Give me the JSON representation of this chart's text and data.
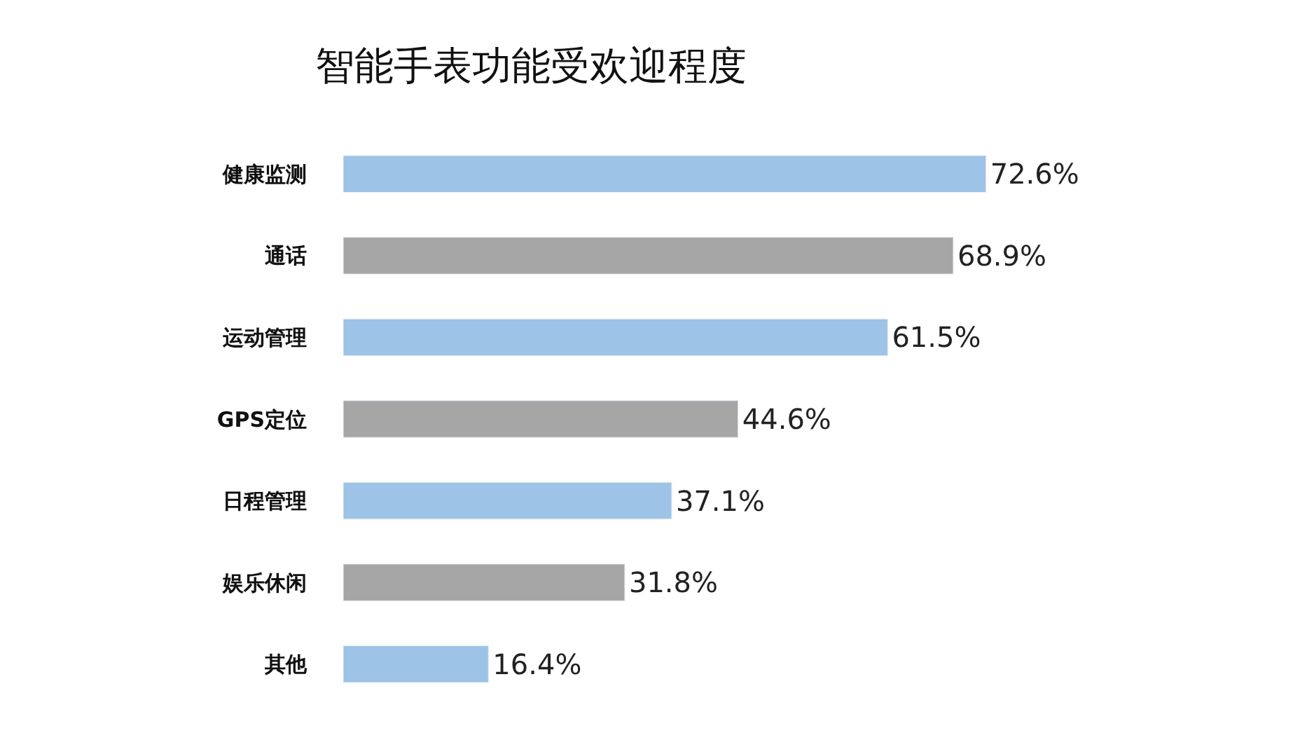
{
  "chart_data": {
    "type": "bar",
    "orientation": "horizontal",
    "title": "智能手表功能受欢迎程度",
    "categories": [
      "健康监测",
      "通话",
      "运动管理",
      "GPS定位",
      "日程管理",
      "娱乐休闲",
      "其他"
    ],
    "values": [
      72.6,
      68.9,
      61.5,
      44.6,
      37.1,
      31.8,
      16.4
    ],
    "colors": [
      "#9dc3e6",
      "#a6a6a6",
      "#9dc3e6",
      "#a6a6a6",
      "#9dc3e6",
      "#a6a6a6",
      "#9dc3e6"
    ],
    "value_labels": [
      "72.6%",
      "68.9%",
      "61.5%",
      "44.6%",
      "37.1%",
      "31.8%",
      "16.4%"
    ]
  }
}
